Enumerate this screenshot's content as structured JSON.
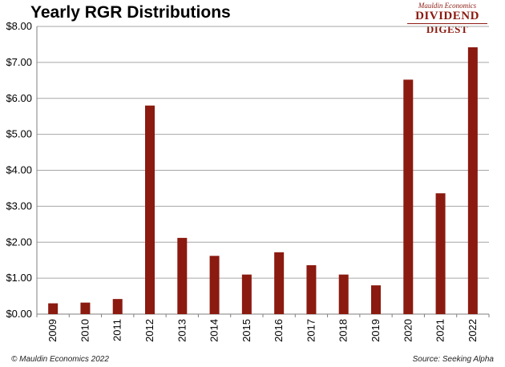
{
  "header": {
    "title": "Yearly RGR Distributions"
  },
  "brand": {
    "line1": "Mauldin Economics",
    "line2": "DIVIDEND",
    "line3": "DIGEST"
  },
  "footer": {
    "copyright": "© Mauldin Economics 2022",
    "source": "Source: Seeking Alpha"
  },
  "colors": {
    "bar": "#8b1a10",
    "grid": "#a6a6a6",
    "brand": "#8b1a10"
  },
  "chart_data": {
    "type": "bar",
    "title": "Yearly RGR Distributions",
    "xlabel": "",
    "ylabel": "",
    "categories": [
      "2009",
      "2010",
      "2011",
      "2012",
      "2013",
      "2014",
      "2015",
      "2016",
      "2017",
      "2018",
      "2019",
      "2020",
      "2021",
      "2022"
    ],
    "values": [
      0.3,
      0.32,
      0.42,
      5.8,
      2.12,
      1.62,
      1.1,
      1.72,
      1.36,
      1.1,
      0.8,
      6.52,
      3.36,
      7.42
    ],
    "ylim": [
      0,
      8
    ],
    "yticks": [
      "$0.00",
      "$1.00",
      "$2.00",
      "$3.00",
      "$4.00",
      "$5.00",
      "$6.00",
      "$7.00",
      "$8.00"
    ],
    "grid": true,
    "legend": "none"
  }
}
